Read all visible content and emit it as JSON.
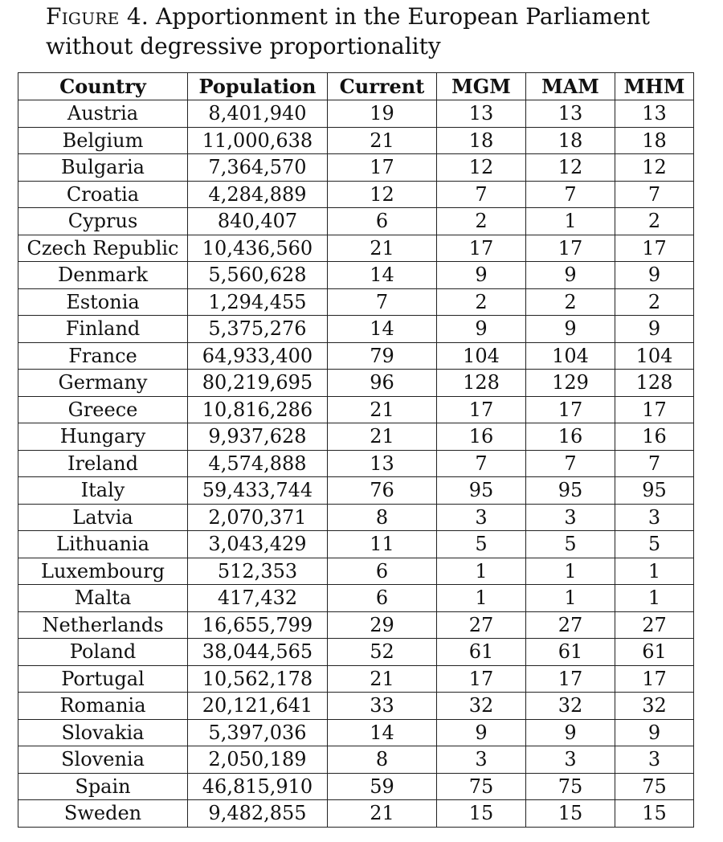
{
  "caption": {
    "label": "Figure 4.",
    "title": "Apportionment in the European Parliament without degressive proportionality"
  },
  "table": {
    "headers": [
      "Country",
      "Population",
      "Current",
      "MGM",
      "MAM",
      "MHM"
    ],
    "rows": [
      [
        "Austria",
        "8,401,940",
        "19",
        "13",
        "13",
        "13"
      ],
      [
        "Belgium",
        "11,000,638",
        "21",
        "18",
        "18",
        "18"
      ],
      [
        "Bulgaria",
        "7,364,570",
        "17",
        "12",
        "12",
        "12"
      ],
      [
        "Croatia",
        "4,284,889",
        "12",
        "7",
        "7",
        "7"
      ],
      [
        "Cyprus",
        "840,407",
        "6",
        "2",
        "1",
        "2"
      ],
      [
        "Czech Republic",
        "10,436,560",
        "21",
        "17",
        "17",
        "17"
      ],
      [
        "Denmark",
        "5,560,628",
        "14",
        "9",
        "9",
        "9"
      ],
      [
        "Estonia",
        "1,294,455",
        "7",
        "2",
        "2",
        "2"
      ],
      [
        "Finland",
        "5,375,276",
        "14",
        "9",
        "9",
        "9"
      ],
      [
        "France",
        "64,933,400",
        "79",
        "104",
        "104",
        "104"
      ],
      [
        "Germany",
        "80,219,695",
        "96",
        "128",
        "129",
        "128"
      ],
      [
        "Greece",
        "10,816,286",
        "21",
        "17",
        "17",
        "17"
      ],
      [
        "Hungary",
        "9,937,628",
        "21",
        "16",
        "16",
        "16"
      ],
      [
        "Ireland",
        "4,574,888",
        "13",
        "7",
        "7",
        "7"
      ],
      [
        "Italy",
        "59,433,744",
        "76",
        "95",
        "95",
        "95"
      ],
      [
        "Latvia",
        "2,070,371",
        "8",
        "3",
        "3",
        "3"
      ],
      [
        "Lithuania",
        "3,043,429",
        "11",
        "5",
        "5",
        "5"
      ],
      [
        "Luxembourg",
        "512,353",
        "6",
        "1",
        "1",
        "1"
      ],
      [
        "Malta",
        "417,432",
        "6",
        "1",
        "1",
        "1"
      ],
      [
        "Netherlands",
        "16,655,799",
        "29",
        "27",
        "27",
        "27"
      ],
      [
        "Poland",
        "38,044,565",
        "52",
        "61",
        "61",
        "61"
      ],
      [
        "Portugal",
        "10,562,178",
        "21",
        "17",
        "17",
        "17"
      ],
      [
        "Romania",
        "20,121,641",
        "33",
        "32",
        "32",
        "32"
      ],
      [
        "Slovakia",
        "5,397,036",
        "14",
        "9",
        "9",
        "9"
      ],
      [
        "Slovenia",
        "2,050,189",
        "8",
        "3",
        "3",
        "3"
      ],
      [
        "Spain",
        "46,815,910",
        "59",
        "75",
        "75",
        "75"
      ],
      [
        "Sweden",
        "9,482,855",
        "21",
        "15",
        "15",
        "15"
      ]
    ]
  }
}
